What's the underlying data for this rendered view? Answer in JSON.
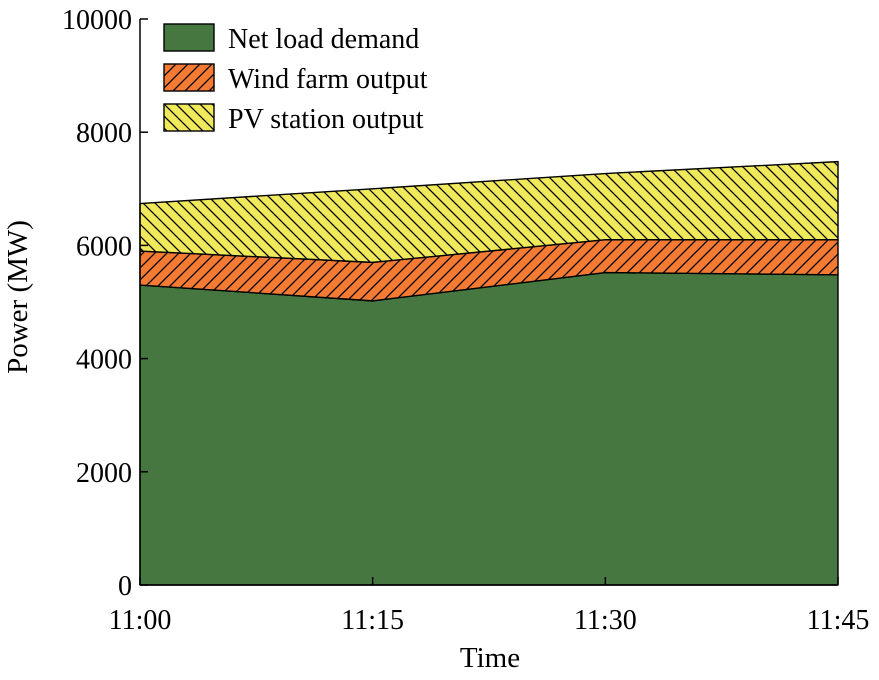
{
  "chart_data": {
    "type": "area",
    "stacked": true,
    "x": [
      "11:00",
      "11:15",
      "11:30",
      "11:45"
    ],
    "series": [
      {
        "name": "Net load demand",
        "values": [
          5300,
          5020,
          5520,
          5480
        ],
        "color": "#467741",
        "pattern": "solid"
      },
      {
        "name": "Wind farm output",
        "values": [
          600,
          680,
          580,
          620
        ],
        "color": "#F57A33",
        "pattern": "hatch"
      },
      {
        "name": "PV station output",
        "values": [
          840,
          1300,
          1170,
          1380
        ],
        "color": "#F0EA5B",
        "pattern": "hatch"
      }
    ],
    "xlabel": "Time",
    "ylabel": "Power (MW)",
    "ylim": [
      0,
      10000
    ],
    "yticks": [
      0,
      2000,
      4000,
      6000,
      8000,
      10000
    ],
    "grid": false,
    "legend_position": "top-left"
  }
}
